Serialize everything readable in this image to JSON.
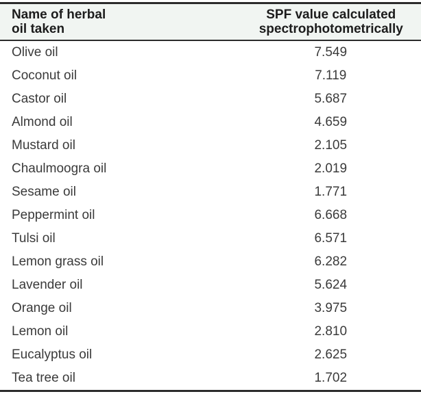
{
  "table": {
    "columns": [
      {
        "id": "oil_name",
        "label": "Name of herbal\noil taken"
      },
      {
        "id": "spf_value",
        "label": "SPF value calculated\nspectrophotometrically"
      }
    ],
    "rows": [
      {
        "oil_name": "Olive oil",
        "spf_value": "7.549"
      },
      {
        "oil_name": "Coconut oil",
        "spf_value": "7.119"
      },
      {
        "oil_name": "Castor oil",
        "spf_value": "5.687"
      },
      {
        "oil_name": "Almond oil",
        "spf_value": "4.659"
      },
      {
        "oil_name": "Mustard oil",
        "spf_value": "2.105"
      },
      {
        "oil_name": "Chaulmoogra oil",
        "spf_value": "2.019"
      },
      {
        "oil_name": "Sesame oil",
        "spf_value": "1.771"
      },
      {
        "oil_name": "Peppermint oil",
        "spf_value": "6.668"
      },
      {
        "oil_name": "Tulsi oil",
        "spf_value": "6.571"
      },
      {
        "oil_name": "Lemon grass oil",
        "spf_value": "6.282"
      },
      {
        "oil_name": "Lavender oil",
        "spf_value": "5.624"
      },
      {
        "oil_name": "Orange oil",
        "spf_value": "3.975"
      },
      {
        "oil_name": "Lemon oil",
        "spf_value": "2.810"
      },
      {
        "oil_name": "Eucalyptus oil",
        "spf_value": "2.625"
      },
      {
        "oil_name": "Tea tree oil",
        "spf_value": "1.702"
      }
    ]
  },
  "chart_data": {
    "type": "table",
    "columns": [
      "Name of herbal oil taken",
      "SPF value calculated spectrophotometrically"
    ],
    "rows": [
      [
        "Olive oil",
        7.549
      ],
      [
        "Coconut oil",
        7.119
      ],
      [
        "Castor oil",
        5.687
      ],
      [
        "Almond oil",
        4.659
      ],
      [
        "Mustard oil",
        2.105
      ],
      [
        "Chaulmoogra oil",
        2.019
      ],
      [
        "Sesame oil",
        1.771
      ],
      [
        "Peppermint oil",
        6.668
      ],
      [
        "Tulsi oil",
        6.571
      ],
      [
        "Lemon grass oil",
        6.282
      ],
      [
        "Lavender oil",
        5.624
      ],
      [
        "Orange oil",
        3.975
      ],
      [
        "Lemon oil",
        2.81
      ],
      [
        "Eucalyptus oil",
        2.625
      ],
      [
        "Tea tree oil",
        1.702
      ]
    ]
  },
  "colors": {
    "header_background": "#f1f5f2",
    "rule": "#2b2b2b",
    "header_text": "#1c1c1c",
    "body_text": "#3a3a3a",
    "page_background": "#ffffff"
  }
}
